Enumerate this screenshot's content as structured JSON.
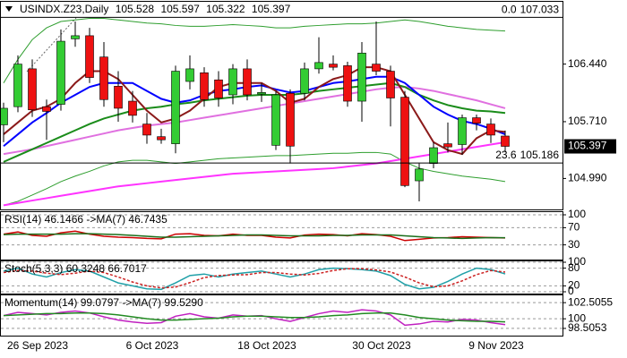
{
  "chart_data": [
    {
      "type": "candlestick",
      "title": "USINDX.Z23,Daily",
      "categories": [
        null,
        null,
        "26 Sep 2023",
        null,
        null,
        null,
        null,
        null,
        null,
        null,
        "6 Oct 2023",
        null,
        null,
        null,
        null,
        null,
        null,
        null,
        "18 Oct 2023",
        null,
        null,
        null,
        null,
        null,
        null,
        null,
        "30 Oct 2023",
        null,
        null,
        null,
        null,
        null,
        null,
        null,
        "9 Nov 2023",
        null
      ],
      "open": [
        105.67,
        105.9,
        106.38,
        105.9,
        105.93,
        106.76,
        106.8,
        106.53,
        106.16,
        105.97,
        105.68,
        105.52,
        105.43,
        106.22,
        106.33,
        106.24,
        106.05,
        106.38,
        106.06,
        105.41,
        106.07,
        106.07,
        106.38,
        106.44,
        106.42,
        105.97,
        106.44,
        106.35,
        106.02,
        104.96,
        105.18,
        105.43,
        105.42,
        105.76,
        105.68,
        105.528
      ],
      "high": [
        105.95,
        106.55,
        106.5,
        105.99,
        106.88,
        106.98,
        106.9,
        106.72,
        106.35,
        106.1,
        105.82,
        105.62,
        106.42,
        106.55,
        106.4,
        106.35,
        106.44,
        106.5,
        106.2,
        106.1,
        106.12,
        106.46,
        106.78,
        106.55,
        106.47,
        106.72,
        106.98,
        106.42,
        106.1,
        105.18,
        105.45,
        105.7,
        105.8,
        105.8,
        105.75,
        105.597
      ],
      "low": [
        105.45,
        105.83,
        105.77,
        105.48,
        105.85,
        106.66,
        106.2,
        105.9,
        105.71,
        105.7,
        105.43,
        105.43,
        105.31,
        106.12,
        105.9,
        105.9,
        105.93,
        105.98,
        105.96,
        105.35,
        105.18,
        105.98,
        106.32,
        106.36,
        105.9,
        105.71,
        106.3,
        105.65,
        104.88,
        104.7,
        105.12,
        105.32,
        105.29,
        105.6,
        105.44,
        105.322
      ],
      "close": [
        105.88,
        106.44,
        105.86,
        105.84,
        106.73,
        106.8,
        106.27,
        105.99,
        105.88,
        105.79,
        105.54,
        105.48,
        106.35,
        106.38,
        105.99,
        106.01,
        106.38,
        106.05,
        106.08,
        106.05,
        105.4,
        106.38,
        106.46,
        106.4,
        105.97,
        106.58,
        106.35,
        106.01,
        104.9,
        105.11,
        105.38,
        105.39,
        105.76,
        105.69,
        105.54,
        105.397
      ],
      "up_color": "#33cc33",
      "down_color": "#ee1111",
      "overlays": [
        {
          "color": "#2e9e2e",
          "width": 1,
          "values": [
            106.2,
            106.5,
            106.75,
            106.9,
            106.98,
            107.0,
            107.02,
            107.02,
            107.0,
            106.98,
            106.96,
            106.95,
            106.93,
            106.92,
            106.92,
            106.93,
            106.94,
            106.93,
            106.92,
            106.9,
            106.9,
            106.92,
            106.93,
            106.94,
            106.95,
            106.95,
            106.96,
            106.98,
            107.0,
            106.98,
            106.95,
            106.92,
            106.9,
            106.88,
            106.87,
            106.86
          ]
        },
        {
          "color": "#2e9e2e",
          "width": 1,
          "values": [
            104.65,
            104.7,
            104.78,
            104.86,
            104.95,
            105.02,
            105.08,
            105.15,
            105.2,
            105.22,
            105.22,
            105.2,
            105.18,
            105.2,
            105.22,
            105.24,
            105.25,
            105.26,
            105.27,
            105.28,
            105.28,
            105.29,
            105.3,
            105.31,
            105.31,
            105.32,
            105.32,
            105.3,
            105.2,
            105.12,
            105.08,
            105.05,
            105.02,
            105.0,
            104.98,
            104.95
          ]
        },
        {
          "color": "#ff33ff",
          "width": 2,
          "values": [
            104.65,
            104.68,
            104.71,
            104.74,
            104.77,
            104.8,
            104.83,
            104.86,
            104.89,
            104.91,
            104.93,
            104.95,
            104.97,
            104.99,
            105.01,
            105.03,
            105.05,
            105.06,
            105.07,
            105.08,
            105.09,
            105.1,
            105.11,
            105.12,
            105.14,
            105.16,
            105.18,
            105.21,
            105.24,
            105.27,
            105.3,
            105.33,
            105.36,
            105.39,
            105.42,
            105.45
          ]
        },
        {
          "color": "#e070e0",
          "width": 2,
          "values": [
            105.3,
            105.33,
            105.36,
            105.4,
            105.44,
            105.48,
            105.52,
            105.56,
            105.6,
            105.63,
            105.66,
            105.68,
            105.7,
            105.73,
            105.76,
            105.79,
            105.82,
            105.85,
            105.88,
            105.91,
            105.94,
            105.97,
            106.0,
            106.03,
            106.06,
            106.09,
            106.12,
            106.14,
            106.15,
            106.13,
            106.1,
            106.06,
            106.02,
            105.98,
            105.93,
            105.88
          ]
        },
        {
          "color": "#1a8c1a",
          "width": 2,
          "values": [
            105.2,
            105.28,
            105.36,
            105.44,
            105.52,
            105.6,
            105.68,
            105.75,
            105.8,
            105.85,
            105.88,
            105.9,
            105.93,
            105.95,
            105.98,
            106.0,
            106.02,
            106.04,
            106.05,
            106.05,
            106.05,
            106.07,
            106.1,
            106.12,
            106.14,
            106.16,
            106.18,
            106.2,
            106.15,
            106.05,
            105.98,
            105.92,
            105.88,
            105.85,
            105.84,
            105.82
          ]
        },
        {
          "color": "#0000ff",
          "width": 2,
          "values": [
            105.4,
            105.55,
            105.7,
            105.82,
            105.95,
            106.05,
            106.15,
            106.2,
            106.2,
            106.2,
            106.1,
            106.0,
            105.95,
            105.98,
            106.05,
            106.1,
            106.12,
            106.15,
            106.17,
            106.12,
            106.08,
            106.1,
            106.15,
            106.2,
            106.22,
            106.25,
            106.28,
            106.28,
            106.2,
            106.05,
            105.9,
            105.8,
            105.72,
            105.68,
            105.62,
            105.55
          ]
        },
        {
          "color": "#8b1a1a",
          "width": 2,
          "values": [
            105.55,
            105.7,
            105.85,
            105.9,
            106.0,
            106.2,
            106.35,
            106.35,
            106.25,
            106.05,
            105.85,
            105.7,
            105.75,
            105.85,
            106.0,
            106.15,
            106.2,
            106.2,
            106.2,
            106.1,
            105.95,
            106.0,
            106.15,
            106.25,
            106.3,
            106.4,
            106.4,
            106.35,
            106.05,
            105.75,
            105.45,
            105.35,
            105.3,
            105.5,
            105.6,
            105.58
          ]
        }
      ],
      "fib": [
        {
          "level": "0.0",
          "price": 107.033
        },
        {
          "level": "23.6",
          "price": 105.186
        }
      ],
      "ylim": [
        104.62,
        107.23
      ],
      "yticks": [
        {
          "value": 104.99,
          "label": "104.990"
        },
        {
          "value": 105.71,
          "label": "105.710"
        },
        {
          "value": 106.44,
          "label": "106.440"
        }
      ]
    },
    {
      "type": "line",
      "label": "RSI(14) 46.1466 ->MA(7) 46.7435",
      "series": [
        {
          "color": "#cc0000",
          "values": [
            55,
            60,
            52,
            50,
            58,
            62,
            55,
            50,
            48,
            47,
            45,
            44,
            55,
            56,
            52,
            51,
            55,
            52,
            52,
            48,
            46,
            53,
            55,
            54,
            51,
            56,
            54,
            50,
            40,
            43,
            46,
            47,
            49,
            48,
            47,
            46.1466
          ]
        },
        {
          "color": "#1a6e1a",
          "values": [
            54,
            55,
            55,
            55,
            55,
            56,
            56,
            55,
            54,
            52,
            50,
            48,
            48,
            49,
            50,
            51,
            52,
            53,
            53,
            52,
            51,
            51,
            51,
            52,
            52,
            53,
            53,
            53,
            51,
            49,
            47,
            46,
            45,
            46,
            47,
            46.7435
          ]
        }
      ],
      "ylim": [
        0,
        100
      ],
      "yticks": [
        30,
        70,
        100
      ]
    },
    {
      "type": "line",
      "label": "Stoch(5,3,3) 60.3248 66.7017",
      "series": [
        {
          "color": "#20a0a8",
          "values": [
            70,
            80,
            60,
            50,
            65,
            75,
            70,
            50,
            30,
            20,
            10,
            8,
            30,
            55,
            60,
            50,
            60,
            65,
            70,
            60,
            50,
            60,
            75,
            80,
            78,
            75,
            70,
            55,
            25,
            10,
            15,
            35,
            60,
            80,
            75,
            60.3248
          ]
        },
        {
          "color": "#cc2222",
          "dashed": true,
          "values": [
            65,
            72,
            70,
            63,
            58,
            63,
            70,
            65,
            50,
            33,
            20,
            13,
            16,
            31,
            48,
            55,
            57,
            58,
            65,
            65,
            60,
            57,
            62,
            72,
            78,
            78,
            74,
            67,
            50,
            30,
            17,
            20,
            37,
            58,
            72,
            66.7017
          ]
        }
      ],
      "ylim": [
        0,
        100
      ],
      "yticks": [
        0,
        20,
        80,
        100
      ]
    },
    {
      "type": "line",
      "label": "Momentum(14) 99.0797 ->MA(7) 99.5290",
      "series": [
        {
          "color": "#c020c0",
          "values": [
            100.5,
            101,
            100.8,
            100.6,
            101,
            101.2,
            100.9,
            100.3,
            99.8,
            99.5,
            99.3,
            99.4,
            100.4,
            100.8,
            100.3,
            100.1,
            100.6,
            100.4,
            100.5,
            100.0,
            99.6,
            100.2,
            100.8,
            101.2,
            101.0,
            101.4,
            101.2,
            100.6,
            99.0,
            99.2,
            99.6,
            99.5,
            99.9,
            99.8,
            99.4,
            99.0797
          ]
        },
        {
          "color": "#228b22",
          "values": [
            100.5,
            100.6,
            100.7,
            100.8,
            100.8,
            100.9,
            100.9,
            100.8,
            100.6,
            100.3,
            100.0,
            99.8,
            99.8,
            99.9,
            100.0,
            100.1,
            100.3,
            100.4,
            100.4,
            100.3,
            100.2,
            100.2,
            100.3,
            100.5,
            100.6,
            100.8,
            100.9,
            100.9,
            100.6,
            100.2,
            100.0,
            99.8,
            99.7,
            99.6,
            99.6,
            99.529
          ]
        }
      ],
      "ylim": [
        97.8,
        103.5
      ],
      "yticks": [
        98.5053,
        100,
        102.5055
      ]
    }
  ]
}
